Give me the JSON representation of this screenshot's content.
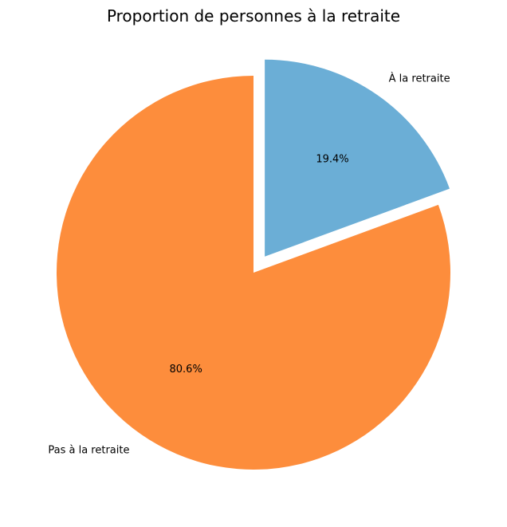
{
  "chart_data": {
    "type": "pie",
    "title": "Proportion de personnes à la retraite",
    "start_angle_deg": 90,
    "direction": "clockwise",
    "slices": [
      {
        "label": "À la retraite",
        "value": 19.4,
        "pct_label": "19.4%",
        "color": "#6baed6",
        "exploded": true
      },
      {
        "label": "Pas à la retraite",
        "value": 80.6,
        "pct_label": "80.6%",
        "color": "#fd8d3c",
        "exploded": false
      }
    ]
  }
}
